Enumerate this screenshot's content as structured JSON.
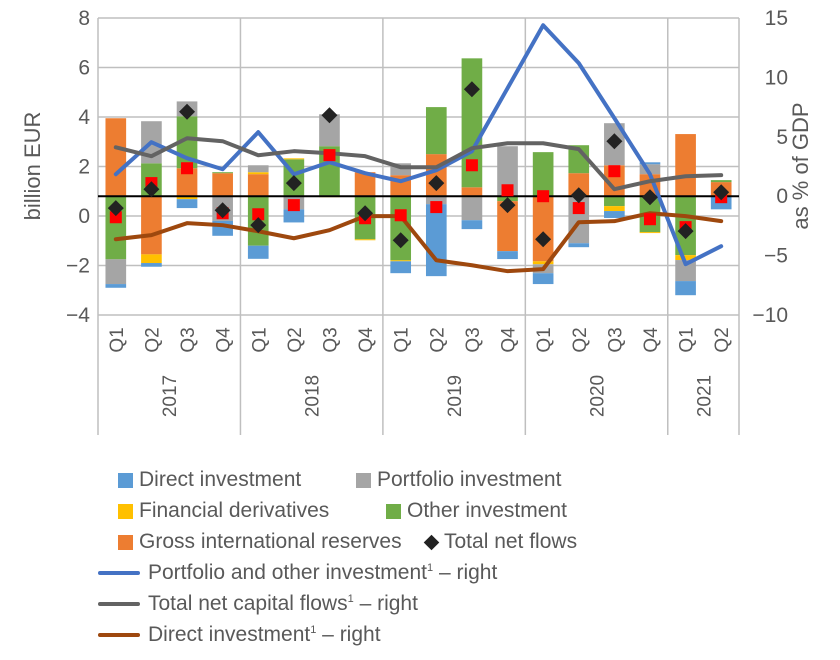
{
  "chart_data": {
    "type": "bar",
    "subtype": "stacked bar with markers and secondary-axis lines",
    "title": "",
    "ylabel_left": "billion EUR",
    "ylabel_right": "as % of GDP",
    "ylim_left": [
      -4,
      8
    ],
    "yticks_left": [
      8,
      6,
      4,
      2,
      0,
      -2,
      -4
    ],
    "ytick_labels_left": [
      "8",
      "6",
      "4",
      "2",
      "0",
      "−2",
      "−4"
    ],
    "ylim_right": [
      -10,
      15
    ],
    "yticks_right": [
      15,
      10,
      5,
      0,
      -5,
      -10
    ],
    "ytick_labels_right": [
      "15",
      "10",
      "5",
      "0",
      "−5",
      "−10"
    ],
    "bar_baseline_note": "bars and markers stack from the right-axis zero line",
    "grid": true,
    "legend_position": "bottom",
    "categories": [
      "Q1",
      "Q2",
      "Q3",
      "Q4",
      "Q1",
      "Q2",
      "Q3",
      "Q4",
      "Q1",
      "Q2",
      "Q3",
      "Q4",
      "Q1",
      "Q2",
      "Q3",
      "Q4",
      "Q1",
      "Q2"
    ],
    "years": [
      {
        "label": "2017",
        "quarters": 4
      },
      {
        "label": "2018",
        "quarters": 4
      },
      {
        "label": "2019",
        "quarters": 4
      },
      {
        "label": "2020",
        "quarters": 4
      },
      {
        "label": "2021",
        "quarters": 2
      }
    ],
    "bar_series": [
      {
        "name": "Direct investment",
        "color": "#5b9bd5",
        "values": [
          -0.15,
          -0.15,
          -0.36,
          -0.6,
          -0.53,
          -0.53,
          0,
          0,
          -0.48,
          -2.91,
          -0.36,
          -0.32,
          -0.44,
          -0.16,
          -0.28,
          0.08,
          -0.57,
          -0.53
        ]
      },
      {
        "name": "Portfolio investment",
        "color": "#a5a5a5",
        "values": [
          -1.0,
          1.7,
          0.6,
          -1.0,
          0.28,
          -0.53,
          1.29,
          0,
          0.48,
          -0.32,
          -0.93,
          2.02,
          -0.36,
          -1.9,
          1.7,
          0.4,
          -0.85,
          0
        ]
      },
      {
        "name": "Financial derivatives",
        "color": "#ffc000",
        "values": [
          0,
          -0.35,
          -0.12,
          0,
          0.08,
          0.04,
          -0.04,
          -0.04,
          -0.04,
          0,
          -0.04,
          0,
          -0.12,
          0,
          -0.2,
          -0.04,
          -0.2,
          0
        ]
      },
      {
        "name": "Other investment",
        "color": "#70ad47",
        "values": [
          -2.55,
          1.33,
          2.1,
          0.04,
          -2.0,
          1.49,
          2.02,
          -1.74,
          -2.59,
          1.9,
          5.21,
          -0.2,
          1.78,
          1.13,
          -0.4,
          -1.45,
          -2.38,
          0.08
        ]
      },
      {
        "name": "Gross international reserves",
        "color": "#ed7d31",
        "values": [
          3.15,
          -2.35,
          1.13,
          0.93,
          0.89,
          0,
          0,
          0.97,
          0.85,
          1.7,
          0.36,
          -2.02,
          -2.63,
          0.93,
          1.25,
          0.89,
          2.51,
          0.57
        ]
      }
    ],
    "stack_order_positive": [
      "Gross international reserves",
      "Other investment",
      "Financial derivatives",
      "Portfolio investment",
      "Direct investment"
    ],
    "stack_order_negative": [
      "Other investment",
      "Gross international reserves",
      "Financial derivatives",
      "Portfolio investment",
      "Direct investment"
    ],
    "marker_series": [
      {
        "name": "Total net flows",
        "marker": "diamond",
        "color": "#222222",
        "values": [
          -0.48,
          0.28,
          3.41,
          -0.57,
          -1.17,
          0.53,
          3.27,
          -0.69,
          -1.78,
          0.53,
          4.32,
          -0.36,
          -1.74,
          0.04,
          2.22,
          -0.04,
          -1.41,
          0.16
        ]
      },
      {
        "name": "",
        "marker": "square",
        "color": "#ff0000",
        "values": [
          -0.85,
          0.53,
          1.13,
          -0.69,
          -0.73,
          -0.36,
          1.66,
          -0.89,
          -0.77,
          -0.44,
          1.25,
          0.24,
          0.0,
          -0.48,
          1.01,
          -0.93,
          -1.25,
          -0.04
        ]
      }
    ],
    "line_series": [
      {
        "name": "Portfolio and other investment",
        "sup": "1",
        "suffix": " – right",
        "axis": "right",
        "color": "#4472c4",
        "values": [
          1.85,
          4.55,
          3.2,
          2.27,
          5.39,
          1.85,
          2.86,
          1.94,
          1.26,
          2.19,
          3.79,
          9.09,
          14.39,
          11.2,
          6.57,
          1.85,
          -5.72,
          -4.21
        ]
      },
      {
        "name": "Total net capital flows",
        "sup": "1",
        "suffix": " – right",
        "axis": "right",
        "color": "#636363",
        "values": [
          4.12,
          3.37,
          4.88,
          4.63,
          3.45,
          3.79,
          3.62,
          3.37,
          2.44,
          2.44,
          4.04,
          4.46,
          4.46,
          3.96,
          0.59,
          1.26,
          1.68,
          1.77
        ]
      },
      {
        "name": "Direct investment",
        "sup": "1",
        "suffix": " – right",
        "axis": "right",
        "color": "#9e480e",
        "values": [
          -3.62,
          -3.28,
          -2.27,
          -2.44,
          -2.95,
          -3.54,
          -2.86,
          -1.68,
          -1.68,
          -5.39,
          -5.81,
          -6.31,
          -6.14,
          -2.19,
          -2.1,
          -1.43,
          -1.68,
          -2.1
        ]
      }
    ]
  },
  "legend": {
    "bars": [
      {
        "label": "Direct investment",
        "color": "#5b9bd5"
      },
      {
        "label": "Portfolio investment",
        "color": "#a5a5a5"
      },
      {
        "label": "Financial derivatives",
        "color": "#ffc000"
      },
      {
        "label": "Other investment",
        "color": "#70ad47"
      },
      {
        "label": "Gross international reserves",
        "color": "#ed7d31"
      },
      {
        "label": "Total net flows",
        "color": "#222222"
      }
    ],
    "lines": [
      {
        "label": "Portfolio and other investment",
        "sup": "1",
        "suffix": " – right",
        "color": "#4472c4"
      },
      {
        "label": "Total net capital flows",
        "sup": "1",
        "suffix": " – right",
        "color": "#636363"
      },
      {
        "label": "Direct investment",
        "sup": "1",
        "suffix": " – right",
        "color": "#9e480e"
      }
    ]
  }
}
